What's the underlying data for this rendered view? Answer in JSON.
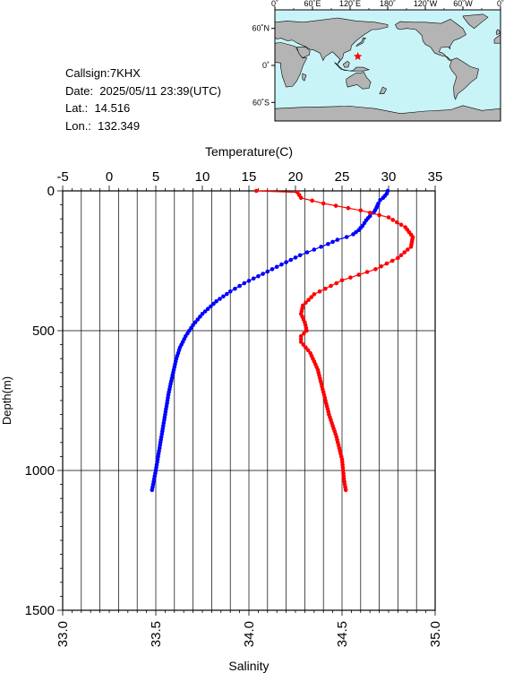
{
  "info": {
    "callsign": "Callsign:7KHX",
    "date": "Date:  2025/05/11 23:39(UTC)",
    "lat": "Lat.:  14.516",
    "lon": "Lon.:  132.349"
  },
  "map": {
    "lon_labels": [
      "0˚",
      "60˚E",
      "120˚E",
      "180˚",
      "120˚W",
      "60˚W",
      "0˚"
    ],
    "lat_labels": [
      "60˚N",
      "0˚",
      "60˚S"
    ],
    "station": {
      "lat": 14.516,
      "lon": 132.349
    },
    "colors": {
      "ocean": "#c8f4f8",
      "land": "#b4b4b4",
      "marker": "#ff0000"
    }
  },
  "chart_data": {
    "type": "line",
    "ylabel": "Depth(m)",
    "ylim": [
      1500,
      0
    ],
    "y_ticks": [
      0,
      500,
      1000,
      1500
    ],
    "grid": true,
    "temperature_axis": {
      "label": "Temperature(C)",
      "range": [
        -5,
        35
      ],
      "ticks": [
        -5,
        0,
        5,
        10,
        15,
        20,
        25,
        30,
        35
      ],
      "tick_labels": [
        "-5",
        "0",
        "5",
        "10",
        "15",
        "20",
        "25",
        "30",
        "35"
      ],
      "position": "top"
    },
    "salinity_axis": {
      "label": "Salinity",
      "range": [
        33.0,
        35.0
      ],
      "ticks": [
        33.0,
        33.5,
        34.0,
        34.5,
        35.0
      ],
      "tick_labels": [
        "33.0",
        "33.5",
        "34.0",
        "34.5",
        "35.0"
      ],
      "position": "bottom"
    },
    "series": [
      {
        "variable": "temperature",
        "color": "#0000ff",
        "points": [
          [
            29.9,
            0
          ],
          [
            29.8,
            10
          ],
          [
            29.6,
            18
          ],
          [
            29.4,
            25
          ],
          [
            29.1,
            33
          ],
          [
            28.9,
            45
          ],
          [
            28.7,
            60
          ],
          [
            28.4,
            78
          ],
          [
            28.0,
            90
          ],
          [
            27.6,
            105
          ],
          [
            27.2,
            125
          ],
          [
            26.8,
            140
          ],
          [
            26.2,
            155
          ],
          [
            25.5,
            165
          ],
          [
            24.5,
            175
          ],
          [
            23.5,
            190
          ],
          [
            22.0,
            210
          ],
          [
            20.5,
            230
          ],
          [
            19.0,
            255
          ],
          [
            17.5,
            280
          ],
          [
            16.0,
            305
          ],
          [
            14.5,
            330
          ],
          [
            13.0,
            360
          ],
          [
            11.5,
            395
          ],
          [
            10.0,
            440
          ],
          [
            9.0,
            480
          ],
          [
            8.2,
            520
          ],
          [
            7.6,
            560
          ],
          [
            7.2,
            600
          ],
          [
            6.8,
            660
          ],
          [
            6.4,
            720
          ],
          [
            6.0,
            800
          ],
          [
            5.5,
            900
          ],
          [
            5.0,
            1000
          ],
          [
            4.6,
            1070
          ]
        ]
      },
      {
        "variable": "salinity",
        "color": "#ff0000",
        "points": [
          [
            34.04,
            0
          ],
          [
            34.26,
            5
          ],
          [
            34.28,
            25
          ],
          [
            34.4,
            45
          ],
          [
            34.6,
            70
          ],
          [
            34.75,
            95
          ],
          [
            34.84,
            130
          ],
          [
            34.88,
            165
          ],
          [
            34.87,
            200
          ],
          [
            34.8,
            240
          ],
          [
            34.68,
            280
          ],
          [
            34.5,
            320
          ],
          [
            34.35,
            370
          ],
          [
            34.29,
            410
          ],
          [
            34.28,
            440
          ],
          [
            34.3,
            470
          ],
          [
            34.31,
            500
          ],
          [
            34.28,
            520
          ],
          [
            34.28,
            540
          ],
          [
            34.33,
            580
          ],
          [
            34.37,
            640
          ],
          [
            34.4,
            720
          ],
          [
            34.43,
            800
          ],
          [
            34.47,
            880
          ],
          [
            34.5,
            960
          ],
          [
            34.51,
            1030
          ],
          [
            34.52,
            1070
          ]
        ]
      }
    ]
  }
}
